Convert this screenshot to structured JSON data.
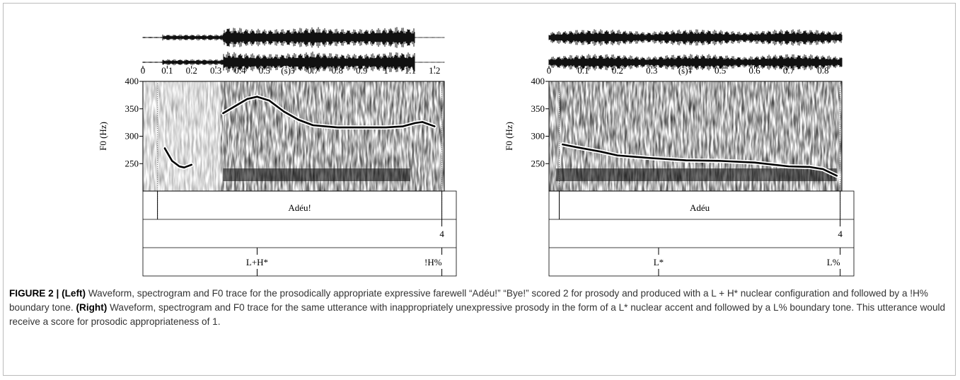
{
  "chart_data": [
    {
      "type": "line",
      "ylabel": "F0 (Hz)",
      "xlabel": "(s)",
      "x": [
        0.09,
        0.12,
        0.15,
        0.17,
        0.2,
        null,
        0.33,
        0.38,
        0.43,
        0.47,
        0.52,
        0.58,
        0.64,
        0.7,
        0.8,
        0.9,
        1.0,
        1.07,
        1.12,
        1.15,
        1.2
      ],
      "values": [
        278,
        255,
        245,
        243,
        248,
        null,
        342,
        355,
        368,
        372,
        365,
        345,
        330,
        320,
        316,
        316,
        316,
        318,
        324,
        326,
        318
      ],
      "color": "#000000",
      "xlim": [
        0,
        1.24
      ],
      "xticks": [
        0,
        0.1,
        0.2,
        0.3,
        0.4,
        0.5,
        0.6,
        0.7,
        0.8,
        0.9,
        1,
        1.1,
        1.2
      ],
      "ylim": [
        200,
        400
      ],
      "yticks": [
        250,
        300,
        350,
        400
      ],
      "word_tier": {
        "text": "Adéu!",
        "start": 0.06,
        "end": 1.23
      },
      "break_tier": {
        "text": "4",
        "time": 1.23
      },
      "tone_tier": [
        {
          "text": "L+H*",
          "time": 0.47
        },
        {
          "text": "!H%",
          "time": 1.23
        }
      ]
    },
    {
      "type": "line",
      "ylabel": "F0 (Hz)",
      "xlabel": "(s)",
      "x": [
        0.04,
        0.08,
        0.15,
        0.2,
        0.3,
        0.4,
        0.5,
        0.6,
        0.7,
        0.76,
        0.8,
        0.84
      ],
      "values": [
        285,
        280,
        272,
        265,
        260,
        256,
        255,
        252,
        245,
        244,
        240,
        228
      ],
      "color": "#000000",
      "xlim": [
        0,
        0.855
      ],
      "xticks": [
        0,
        0.1,
        0.2,
        0.3,
        0.4,
        0.5,
        0.6,
        0.7,
        0.8
      ],
      "ylim": [
        200,
        400
      ],
      "yticks": [
        250,
        300,
        350,
        400
      ],
      "word_tier": {
        "text": "Adéu",
        "start": 0.03,
        "end": 0.85
      },
      "break_tier": {
        "text": "4",
        "time": 0.85
      },
      "tone_tier": [
        {
          "text": "L*",
          "time": 0.32
        },
        {
          "text": "L%",
          "time": 0.85
        }
      ]
    }
  ],
  "caption": {
    "figure": "FIGURE 2 |",
    "left_tag": "(Left)",
    "left_text": "Waveform, spectrogram and F0 trace for the prosodically appropriate expressive farewell “Adéu!” “Bye!” scored 2 for prosody and produced with a L + H* nuclear configuration and followed by a !H% boundary tone.",
    "right_tag": "(Right)",
    "right_text": "Waveform, spectrogram and F0 trace for the same utterance with inappropriately unexpressive prosody in the form of a L* nuclear accent and followed by a L% boundary tone. This utterance would receive a score for prosodic appropriateness of 1."
  }
}
